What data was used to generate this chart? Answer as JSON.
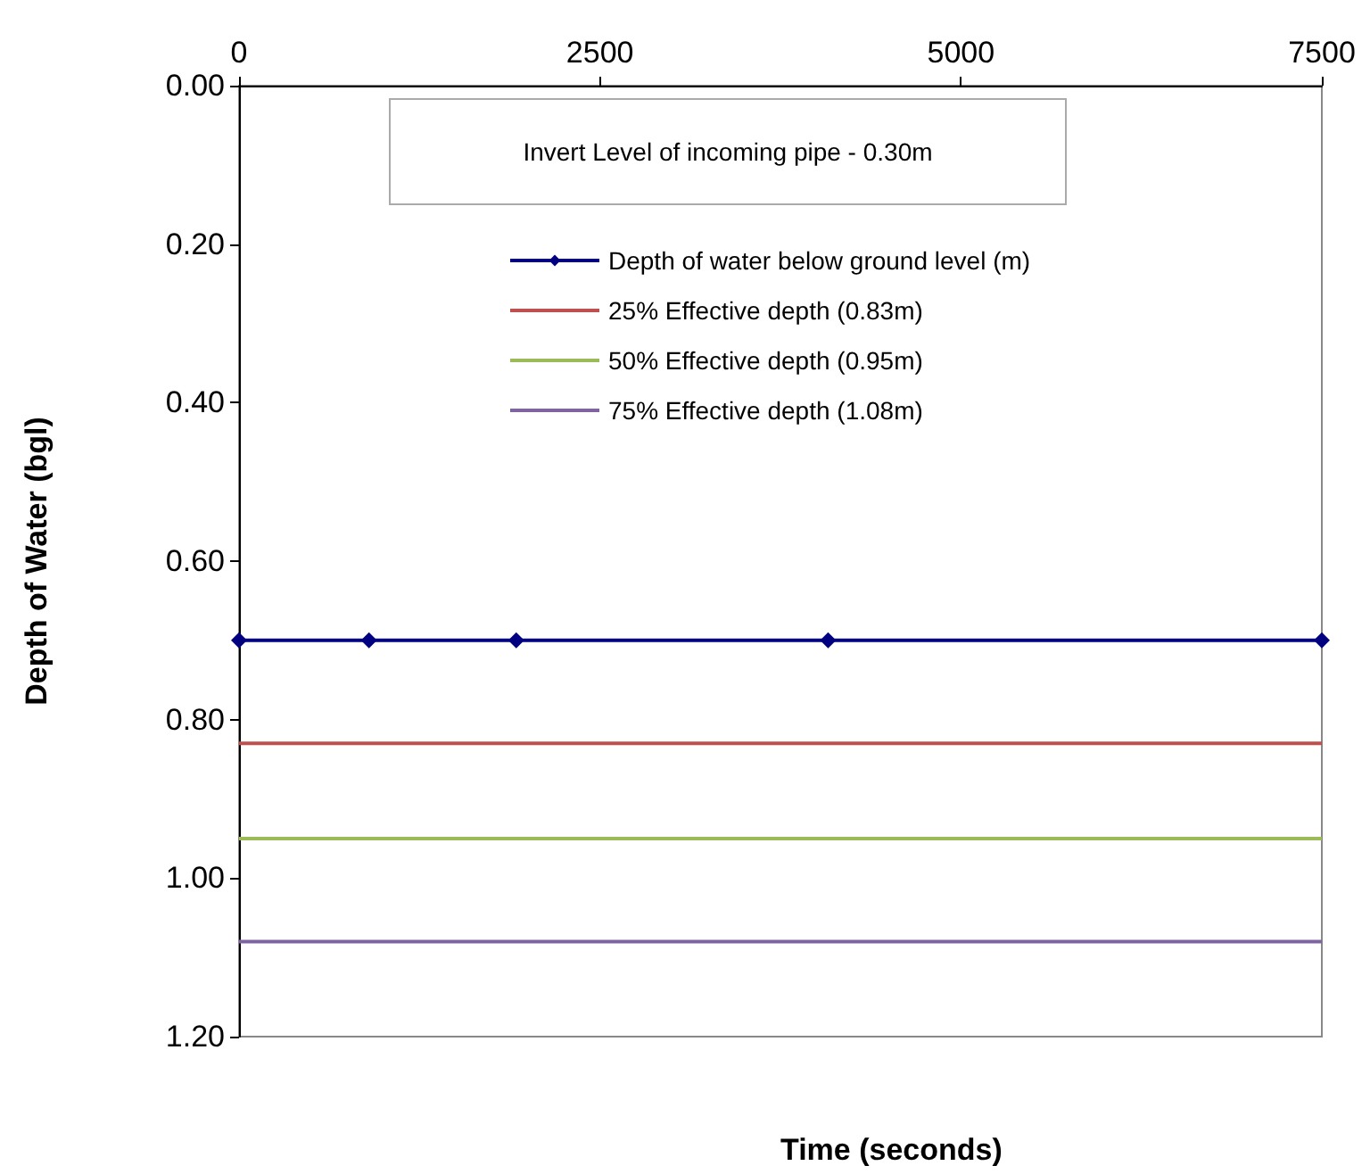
{
  "chart_data": {
    "type": "line",
    "xlabel": "Time (seconds)",
    "ylabel": "Depth of Water (bgl)",
    "xlim": [
      0,
      7500
    ],
    "xticks": [
      0,
      2500,
      5000,
      7500
    ],
    "ylim": [
      1.2,
      0
    ],
    "yticks": [
      {
        "value": 0,
        "label": "0.00"
      },
      {
        "value": 0.2,
        "label": "0.20"
      },
      {
        "value": 0.4,
        "label": "0.40"
      },
      {
        "value": 0.6,
        "label": "0.60"
      },
      {
        "value": 0.8,
        "label": "0.80"
      },
      {
        "value": 1,
        "label": "1.00"
      },
      {
        "value": 1.2,
        "label": "1.20"
      }
    ],
    "grid": false,
    "legend": "top",
    "annotations": [
      "Invert Level of incoming pipe - 0.30m"
    ],
    "series": [
      {
        "name": "Depth of water below ground level (m)",
        "color": "#000080",
        "marker": "diamond",
        "x": [
          0,
          900,
          1920,
          4080,
          7500
        ],
        "values": [
          0.7,
          0.7,
          0.7,
          0.7,
          0.7
        ]
      },
      {
        "name": "25% Effective depth (0.83m)",
        "color": "#c0504d",
        "marker": "none",
        "x": [
          0,
          7500
        ],
        "values": [
          0.83,
          0.83
        ]
      },
      {
        "name": "50% Effective depth (0.95m)",
        "color": "#9bbb59",
        "marker": "none",
        "x": [
          0,
          7500
        ],
        "values": [
          0.95,
          0.95
        ]
      },
      {
        "name": "75% Effective depth (1.08m)",
        "color": "#8064a2",
        "marker": "none",
        "x": [
          0,
          7500
        ],
        "values": [
          1.08,
          1.08
        ]
      }
    ]
  }
}
